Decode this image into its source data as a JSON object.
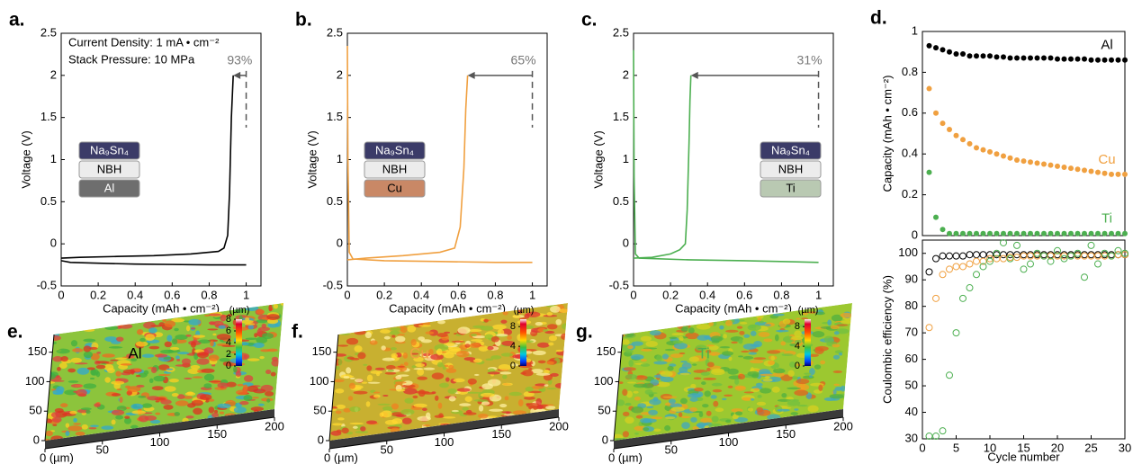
{
  "chart_data": [
    {
      "type": "line",
      "panel": "a.",
      "xlabel": "Capacity (mAh • cm⁻²)",
      "ylabel": "Voltage (V)",
      "xlim": [
        0,
        1.08
      ],
      "ylim": [
        -0.5,
        2.5
      ],
      "xticks": [
        0,
        0.2,
        0.4,
        0.6,
        0.8,
        1
      ],
      "yticks": [
        -0.5,
        0,
        0.5,
        1,
        1.5,
        2,
        2.5
      ],
      "annotations": [
        "Current Density: 1 mA • cm⁻²",
        "Stack Pressure: 10 MPa"
      ],
      "percent_label": "93%",
      "stack": [
        "Na₉Sn₄",
        "NBH",
        "Al"
      ],
      "stack_colors": [
        "#3b3b68",
        "#ececec",
        "#6e6e6e"
      ],
      "stack_text_colors": [
        "#ffffff",
        "#000000",
        "#ffffff"
      ],
      "series": [
        {
          "color": "#000000",
          "x": [
            0,
            0.05,
            0.2,
            0.4,
            0.6,
            0.8,
            1.0
          ],
          "values": [
            -0.2,
            -0.22,
            -0.23,
            -0.24,
            -0.245,
            -0.25,
            -0.25
          ]
        },
        {
          "color": "#000000",
          "x": [
            0,
            0.1,
            0.3,
            0.5,
            0.7,
            0.85,
            0.88,
            0.9,
            0.91,
            0.92,
            0.93
          ],
          "values": [
            -0.17,
            -0.16,
            -0.15,
            -0.14,
            -0.12,
            -0.09,
            -0.05,
            0.1,
            0.6,
            1.5,
            2.0
          ]
        }
      ]
    },
    {
      "type": "line",
      "panel": "b.",
      "xlabel": "Capacity (mAh • cm⁻²)",
      "ylabel": "Voltage (V)",
      "xlim": [
        0,
        1.08
      ],
      "ylim": [
        -0.5,
        2.5
      ],
      "xticks": [
        0,
        0.2,
        0.4,
        0.6,
        0.8,
        1
      ],
      "yticks": [
        -0.5,
        0,
        0.5,
        1,
        1.5,
        2,
        2.5
      ],
      "percent_label": "65%",
      "stack": [
        "Na₉Sn₄",
        "NBH",
        "Cu"
      ],
      "stack_colors": [
        "#3b3b68",
        "#ececec",
        "#c98866"
      ],
      "stack_text_colors": [
        "#ffffff",
        "#000000",
        "#000000"
      ],
      "series": [
        {
          "color": "#f0a040",
          "x": [
            0,
            0.003,
            0.01,
            0.03,
            0.2,
            0.5,
            0.8,
            1.0
          ],
          "values": [
            2.35,
            1.0,
            -0.1,
            -0.18,
            -0.2,
            -0.21,
            -0.22,
            -0.22
          ]
        },
        {
          "color": "#f0a040",
          "x": [
            0,
            0.1,
            0.3,
            0.5,
            0.58,
            0.61,
            0.63,
            0.64,
            0.65
          ],
          "values": [
            -0.19,
            -0.17,
            -0.14,
            -0.1,
            -0.05,
            0.2,
            0.9,
            1.6,
            2.0
          ]
        }
      ]
    },
    {
      "type": "line",
      "panel": "c.",
      "xlabel": "Capacity (mAh • cm⁻²)",
      "ylabel": "Voltage (V)",
      "xlim": [
        0,
        1.08
      ],
      "ylim": [
        -0.5,
        2.5
      ],
      "xticks": [
        0,
        0.2,
        0.4,
        0.6,
        0.8,
        1
      ],
      "yticks": [
        -0.5,
        0,
        0.5,
        1,
        1.5,
        2,
        2.5
      ],
      "percent_label": "31%",
      "stack": [
        "Na₉Sn₄",
        "NBH",
        "Ti"
      ],
      "stack_colors": [
        "#3b3b68",
        "#ececec",
        "#b9c9b2"
      ],
      "stack_text_colors": [
        "#ffffff",
        "#000000",
        "#000000"
      ],
      "series": [
        {
          "color": "#4caf50",
          "x": [
            0,
            0.003,
            0.01,
            0.03,
            0.3,
            0.6,
            1.0
          ],
          "values": [
            2.3,
            0.8,
            -0.12,
            -0.17,
            -0.19,
            -0.2,
            -0.22
          ]
        },
        {
          "color": "#4caf50",
          "x": [
            0,
            0.1,
            0.2,
            0.25,
            0.28,
            0.29,
            0.3,
            0.305,
            0.31
          ],
          "values": [
            -0.17,
            -0.16,
            -0.12,
            -0.07,
            0.0,
            0.4,
            1.2,
            1.7,
            2.0
          ]
        }
      ]
    },
    {
      "type": "scatter",
      "marker": "filled",
      "panel": "d.",
      "ylabel": "Capacity (mAh • cm⁻²)",
      "xlim": [
        0,
        30
      ],
      "ylim": [
        0,
        1
      ],
      "yticks": [
        0,
        0.2,
        0.4,
        0.6,
        0.8,
        1
      ],
      "x": [
        1,
        2,
        3,
        4,
        5,
        6,
        7,
        8,
        9,
        10,
        11,
        12,
        13,
        14,
        15,
        16,
        17,
        18,
        19,
        20,
        21,
        22,
        23,
        24,
        25,
        26,
        27,
        28,
        29,
        30
      ],
      "series": [
        {
          "name": "Al",
          "color": "#000000",
          "values": [
            0.93,
            0.92,
            0.91,
            0.9,
            0.89,
            0.89,
            0.88,
            0.88,
            0.88,
            0.88,
            0.875,
            0.875,
            0.87,
            0.87,
            0.87,
            0.87,
            0.87,
            0.87,
            0.87,
            0.865,
            0.865,
            0.865,
            0.865,
            0.865,
            0.86,
            0.86,
            0.86,
            0.86,
            0.86,
            0.86
          ]
        },
        {
          "name": "Cu",
          "color": "#f0a040",
          "values": [
            0.72,
            0.6,
            0.55,
            0.52,
            0.49,
            0.47,
            0.45,
            0.43,
            0.42,
            0.41,
            0.4,
            0.39,
            0.38,
            0.37,
            0.365,
            0.36,
            0.355,
            0.35,
            0.345,
            0.34,
            0.335,
            0.33,
            0.325,
            0.32,
            0.315,
            0.31,
            0.305,
            0.3,
            0.3,
            0.3
          ]
        },
        {
          "name": "Ti",
          "color": "#4caf50",
          "values": [
            0.31,
            0.09,
            0.03,
            0.01,
            0.01,
            0.01,
            0.01,
            0.01,
            0.01,
            0.01,
            0.01,
            0.01,
            0.01,
            0.01,
            0.01,
            0.01,
            0.01,
            0.01,
            0.01,
            0.01,
            0.01,
            0.01,
            0.01,
            0.01,
            0.01,
            0.01,
            0.01,
            0.01,
            0.01,
            0.01
          ]
        }
      ]
    },
    {
      "type": "scatter",
      "marker": "open",
      "xlabel": "Cycle number",
      "ylabel": "Coulombic efficiency (%)",
      "xlim": [
        0,
        30
      ],
      "ylim": [
        30,
        105
      ],
      "xticks": [
        0,
        5,
        10,
        15,
        20,
        25,
        30
      ],
      "yticks": [
        30,
        40,
        50,
        60,
        70,
        80,
        90,
        100
      ],
      "x": [
        1,
        2,
        3,
        4,
        5,
        6,
        7,
        8,
        9,
        10,
        11,
        12,
        13,
        14,
        15,
        16,
        17,
        18,
        19,
        20,
        21,
        22,
        23,
        24,
        25,
        26,
        27,
        28,
        29,
        30
      ],
      "series": [
        {
          "color": "#000000",
          "values": [
            93,
            98,
            99,
            99,
            99,
            99,
            99.5,
            99.5,
            99.5,
            99.5,
            99.5,
            99.5,
            99.5,
            99.5,
            99.5,
            99.5,
            99.5,
            99.5,
            99.5,
            99.5,
            99.5,
            99.5,
            99.5,
            99.5,
            99.5,
            99.5,
            99.5,
            99.5,
            99.5,
            99.5
          ]
        },
        {
          "color": "#f0a040",
          "values": [
            72,
            83,
            92,
            94,
            95,
            95,
            96,
            97,
            97,
            98,
            98,
            98,
            98.5,
            98.5,
            99,
            99,
            99,
            99,
            99,
            99,
            99,
            99,
            99,
            99,
            99,
            99,
            99,
            99,
            99.5,
            99.5
          ]
        },
        {
          "color": "#4caf50",
          "values": [
            31,
            31,
            33,
            54,
            70,
            83,
            87,
            92,
            95,
            97,
            100,
            104,
            98,
            103,
            94,
            96,
            100,
            99,
            97,
            101,
            98,
            99,
            100,
            91,
            103,
            96,
            100,
            99,
            101,
            100
          ]
        }
      ]
    },
    {
      "type": "surface",
      "panel": "e.",
      "title": "Al",
      "title_color": "#000000",
      "xlim": [
        0,
        200
      ],
      "ylim": [
        0,
        180
      ],
      "xticks": [
        {
          "value": 0,
          "label": "0 (µm)"
        },
        50,
        100,
        150,
        200
      ],
      "yticks": [
        0,
        50,
        100,
        150
      ],
      "cbar_label": "(µm)",
      "clim": [
        0,
        8
      ],
      "cbar_ticks": [
        0,
        2,
        4,
        6,
        8
      ]
    },
    {
      "type": "surface",
      "panel": "f.",
      "title": "Cu",
      "title_color": "#f0a040",
      "xlim": [
        0,
        200
      ],
      "ylim": [
        0,
        180
      ],
      "xticks": [
        {
          "value": 0,
          "label": "0 (µm)"
        },
        50,
        100,
        150,
        200
      ],
      "yticks": [
        0,
        50,
        100,
        150
      ],
      "cbar_label": "(µm)",
      "clim": [
        0,
        9.5
      ],
      "cbar_ticks": [
        0,
        4,
        8
      ]
    },
    {
      "type": "surface",
      "panel": "g.",
      "title": "Ti",
      "title_color": "#4caf50",
      "xlim": [
        0,
        200
      ],
      "ylim": [
        0,
        180
      ],
      "xticks": [
        {
          "value": 0,
          "label": "0 (µm)"
        },
        50,
        100,
        150,
        200
      ],
      "yticks": [
        0,
        50,
        100,
        150
      ],
      "cbar_label": "(µm)",
      "clim": [
        0,
        9.5
      ],
      "cbar_ticks": [
        0,
        4,
        8
      ]
    }
  ]
}
